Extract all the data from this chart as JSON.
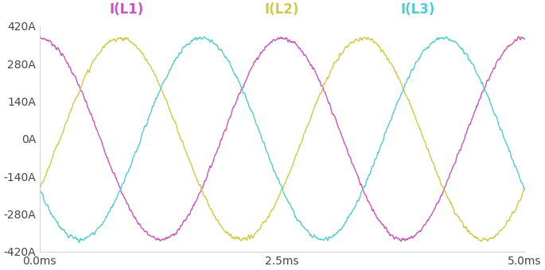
{
  "legend_labels": [
    "I(L1)",
    "I(L2)",
    "I(L3)"
  ],
  "legend_colors": [
    "#cc55bb",
    "#cccc44",
    "#55cccc"
  ],
  "line_colors": [
    "#cc55bb",
    "#cccc44",
    "#55cccc"
  ],
  "amplitude": 375,
  "frequency_hz": 400,
  "phase_shifts_deg": [
    90,
    -30,
    210
  ],
  "t_start_ms": 0.0,
  "t_end_ms": 5.0,
  "num_points": 1000,
  "noise_amplitude": 6,
  "noise_seed": 7,
  "ylim": [
    -420,
    420
  ],
  "yticks": [
    -420,
    -280,
    -140,
    0,
    140,
    280,
    420
  ],
  "ytick_labels": [
    "-420A",
    "-280A",
    "-140A",
    "0A",
    "140A",
    "280A",
    "420A"
  ],
  "xlim_ms": [
    0.0,
    5.0
  ],
  "xticks_ms": [
    0.0,
    2.5,
    5.0
  ],
  "xtick_labels": [
    "0.0ms",
    "2.5ms",
    "5.0ms"
  ],
  "background_color": "#ffffff",
  "plot_bg_color": "#ffffff",
  "legend_fontsize": 12,
  "tick_fontsize": 10,
  "line_width": 1.0,
  "figsize": [
    6.85,
    3.4
  ],
  "dpi": 100
}
